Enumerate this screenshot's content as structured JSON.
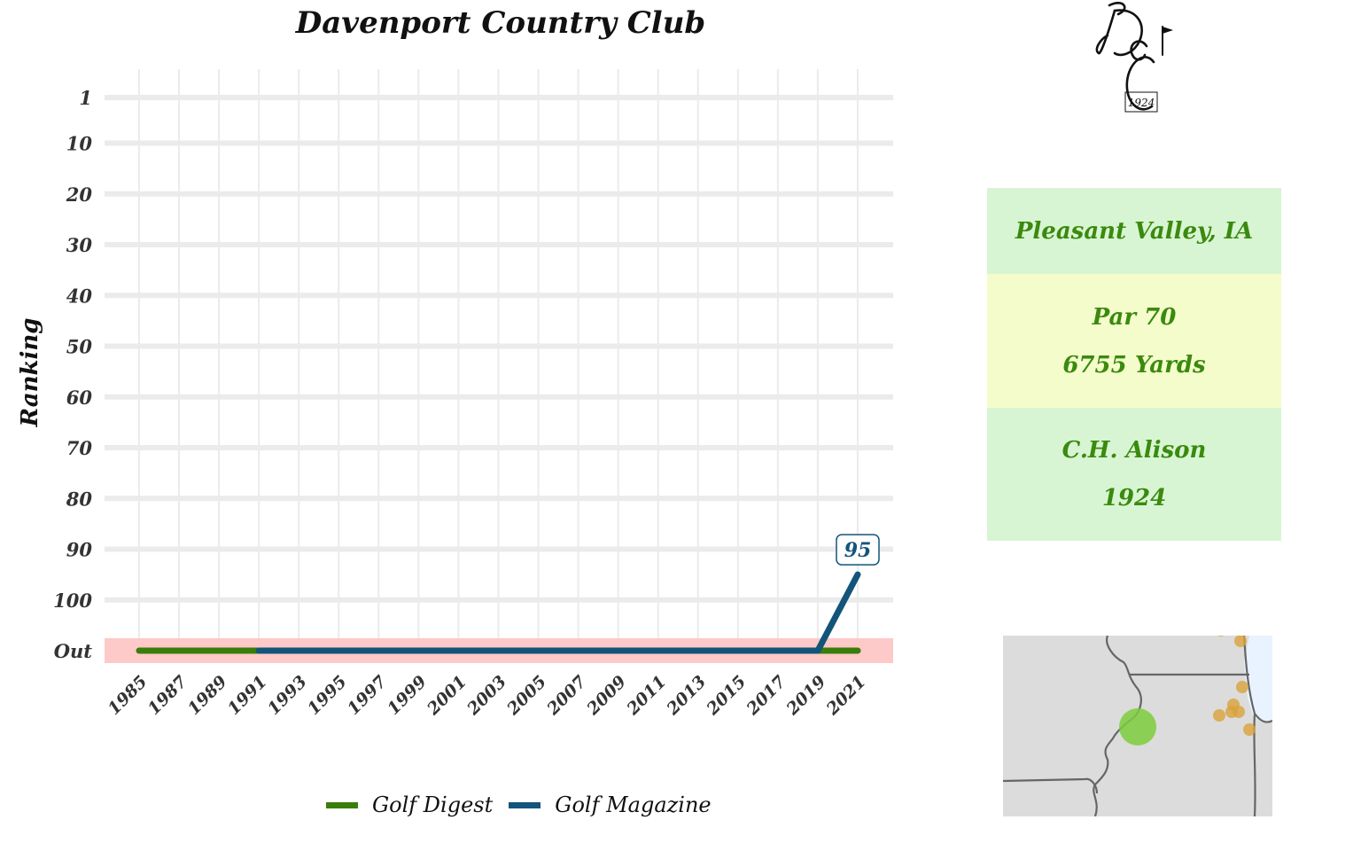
{
  "chart_data": {
    "type": "line",
    "title": "Davenport Country Club",
    "ylabel": "Ranking",
    "xlabel": "",
    "x_tick_labels": [
      "1985",
      "1987",
      "1989",
      "1991",
      "1993",
      "1995",
      "1997",
      "1999",
      "2001",
      "2003",
      "2005",
      "2007",
      "2009",
      "2011",
      "2013",
      "2015",
      "2017",
      "2019",
      "2021"
    ],
    "y_tick_labels": [
      "1",
      "10",
      "20",
      "30",
      "40",
      "50",
      "60",
      "70",
      "80",
      "90",
      "100",
      "Out"
    ],
    "y_tick_values": [
      1,
      10,
      20,
      30,
      40,
      50,
      60,
      70,
      80,
      90,
      100,
      110
    ],
    "ylim": [
      1,
      110
    ],
    "y_reversed": true,
    "out_band": "Out",
    "grid": true,
    "legend_position": "bottom",
    "series": [
      {
        "name": "Golf Digest",
        "color": "#3a7d0a",
        "points": [
          [
            1985,
            "Out"
          ],
          [
            2021,
            "Out"
          ]
        ]
      },
      {
        "name": "Golf Magazine",
        "color": "#13547a",
        "points": [
          [
            1991,
            "Out"
          ],
          [
            2019,
            "Out"
          ],
          [
            2021,
            95
          ]
        ]
      }
    ],
    "annotations": [
      {
        "x": 2021,
        "y": 95,
        "text": "95",
        "series": "Golf Magazine"
      }
    ]
  },
  "info": {
    "location": "Pleasant Valley, IA",
    "par": "Par 70",
    "yards": "6755 Yards",
    "architect": "C.H. Alison",
    "year": "1924"
  },
  "logo": {
    "text": "1924"
  },
  "colors": {
    "out_band": "#fdc9c9",
    "grid": "#ebebeb",
    "info_green": "#d8f5d3",
    "info_yellow": "#f5fccb",
    "info_text": "#3a8a0e",
    "map_land": "#dcdcdc",
    "map_water": "#e8f3ff",
    "map_highlight": "#7ccd3c",
    "map_other": "#d9a23a"
  }
}
